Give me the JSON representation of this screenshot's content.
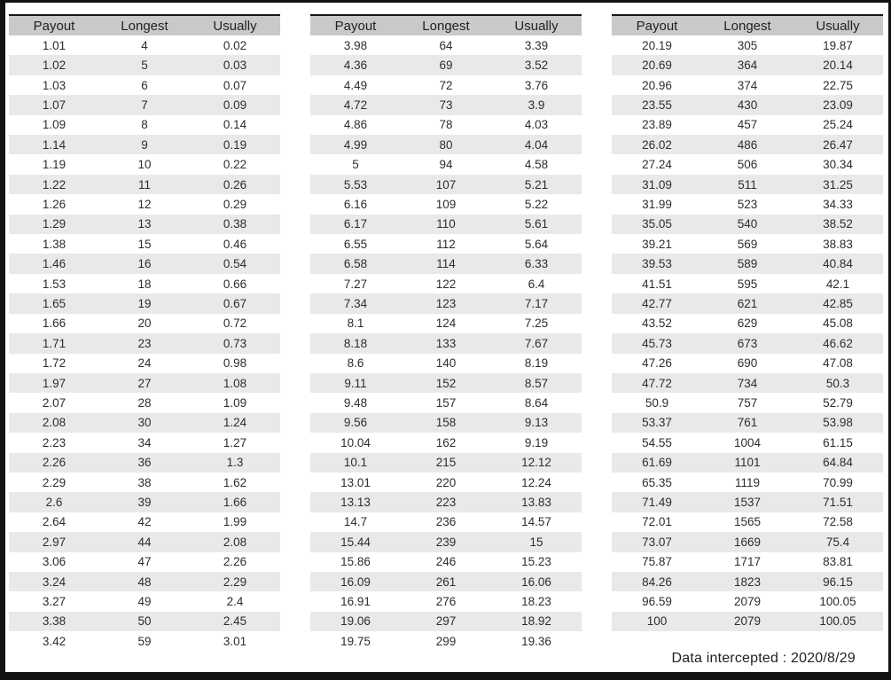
{
  "columns": [
    "Payout",
    "Longest",
    "Usually"
  ],
  "colors": {
    "header_bg": "#c9c9c9",
    "row_alt_bg": "#e9e9e9",
    "frame": "#121212",
    "header_top_border": "#161616",
    "text": "#2d2d2d"
  },
  "tables": [
    {
      "rows": [
        [
          "1.01",
          "4",
          "0.02"
        ],
        [
          "1.02",
          "5",
          "0.03"
        ],
        [
          "1.03",
          "6",
          "0.07"
        ],
        [
          "1.07",
          "7",
          "0.09"
        ],
        [
          "1.09",
          "8",
          "0.14"
        ],
        [
          "1.14",
          "9",
          "0.19"
        ],
        [
          "1.19",
          "10",
          "0.22"
        ],
        [
          "1.22",
          "11",
          "0.26"
        ],
        [
          "1.26",
          "12",
          "0.29"
        ],
        [
          "1.29",
          "13",
          "0.38"
        ],
        [
          "1.38",
          "15",
          "0.46"
        ],
        [
          "1.46",
          "16",
          "0.54"
        ],
        [
          "1.53",
          "18",
          "0.66"
        ],
        [
          "1.65",
          "19",
          "0.67"
        ],
        [
          "1.66",
          "20",
          "0.72"
        ],
        [
          "1.71",
          "23",
          "0.73"
        ],
        [
          "1.72",
          "24",
          "0.98"
        ],
        [
          "1.97",
          "27",
          "1.08"
        ],
        [
          "2.07",
          "28",
          "1.09"
        ],
        [
          "2.08",
          "30",
          "1.24"
        ],
        [
          "2.23",
          "34",
          "1.27"
        ],
        [
          "2.26",
          "36",
          "1.3"
        ],
        [
          "2.29",
          "38",
          "1.62"
        ],
        [
          "2.6",
          "39",
          "1.66"
        ],
        [
          "2.64",
          "42",
          "1.99"
        ],
        [
          "2.97",
          "44",
          "2.08"
        ],
        [
          "3.06",
          "47",
          "2.26"
        ],
        [
          "3.24",
          "48",
          "2.29"
        ],
        [
          "3.27",
          "49",
          "2.4"
        ],
        [
          "3.38",
          "50",
          "2.45"
        ],
        [
          "3.42",
          "59",
          "3.01"
        ]
      ]
    },
    {
      "rows": [
        [
          "3.98",
          "64",
          "3.39"
        ],
        [
          "4.36",
          "69",
          "3.52"
        ],
        [
          "4.49",
          "72",
          "3.76"
        ],
        [
          "4.72",
          "73",
          "3.9"
        ],
        [
          "4.86",
          "78",
          "4.03"
        ],
        [
          "4.99",
          "80",
          "4.04"
        ],
        [
          "5",
          "94",
          "4.58"
        ],
        [
          "5.53",
          "107",
          "5.21"
        ],
        [
          "6.16",
          "109",
          "5.22"
        ],
        [
          "6.17",
          "110",
          "5.61"
        ],
        [
          "6.55",
          "112",
          "5.64"
        ],
        [
          "6.58",
          "114",
          "6.33"
        ],
        [
          "7.27",
          "122",
          "6.4"
        ],
        [
          "7.34",
          "123",
          "7.17"
        ],
        [
          "8.1",
          "124",
          "7.25"
        ],
        [
          "8.18",
          "133",
          "7.67"
        ],
        [
          "8.6",
          "140",
          "8.19"
        ],
        [
          "9.11",
          "152",
          "8.57"
        ],
        [
          "9.48",
          "157",
          "8.64"
        ],
        [
          "9.56",
          "158",
          "9.13"
        ],
        [
          "10.04",
          "162",
          "9.19"
        ],
        [
          "10.1",
          "215",
          "12.12"
        ],
        [
          "13.01",
          "220",
          "12.24"
        ],
        [
          "13.13",
          "223",
          "13.83"
        ],
        [
          "14.7",
          "236",
          "14.57"
        ],
        [
          "15.44",
          "239",
          "15"
        ],
        [
          "15.86",
          "246",
          "15.23"
        ],
        [
          "16.09",
          "261",
          "16.06"
        ],
        [
          "16.91",
          "276",
          "18.23"
        ],
        [
          "19.06",
          "297",
          "18.92"
        ],
        [
          "19.75",
          "299",
          "19.36"
        ]
      ]
    },
    {
      "rows": [
        [
          "20.19",
          "305",
          "19.87"
        ],
        [
          "20.69",
          "364",
          "20.14"
        ],
        [
          "20.96",
          "374",
          "22.75"
        ],
        [
          "23.55",
          "430",
          "23.09"
        ],
        [
          "23.89",
          "457",
          "25.24"
        ],
        [
          "26.02",
          "486",
          "26.47"
        ],
        [
          "27.24",
          "506",
          "30.34"
        ],
        [
          "31.09",
          "511",
          "31.25"
        ],
        [
          "31.99",
          "523",
          "34.33"
        ],
        [
          "35.05",
          "540",
          "38.52"
        ],
        [
          "39.21",
          "569",
          "38.83"
        ],
        [
          "39.53",
          "589",
          "40.84"
        ],
        [
          "41.51",
          "595",
          "42.1"
        ],
        [
          "42.77",
          "621",
          "42.85"
        ],
        [
          "43.52",
          "629",
          "45.08"
        ],
        [
          "45.73",
          "673",
          "46.62"
        ],
        [
          "47.26",
          "690",
          "47.08"
        ],
        [
          "47.72",
          "734",
          "50.3"
        ],
        [
          "50.9",
          "757",
          "52.79"
        ],
        [
          "53.37",
          "761",
          "53.98"
        ],
        [
          "54.55",
          "1004",
          "61.15"
        ],
        [
          "61.69",
          "1101",
          "64.84"
        ],
        [
          "65.35",
          "1119",
          "70.99"
        ],
        [
          "71.49",
          "1537",
          "71.51"
        ],
        [
          "72.01",
          "1565",
          "72.58"
        ],
        [
          "73.07",
          "1669",
          "75.4"
        ],
        [
          "75.87",
          "1717",
          "83.81"
        ],
        [
          "84.26",
          "1823",
          "96.15"
        ],
        [
          "96.59",
          "2079",
          "100.05"
        ],
        [
          "100",
          "2079",
          "100.05"
        ]
      ]
    }
  ],
  "footer": {
    "text": "Data intercepted : 2020/8/29"
  }
}
